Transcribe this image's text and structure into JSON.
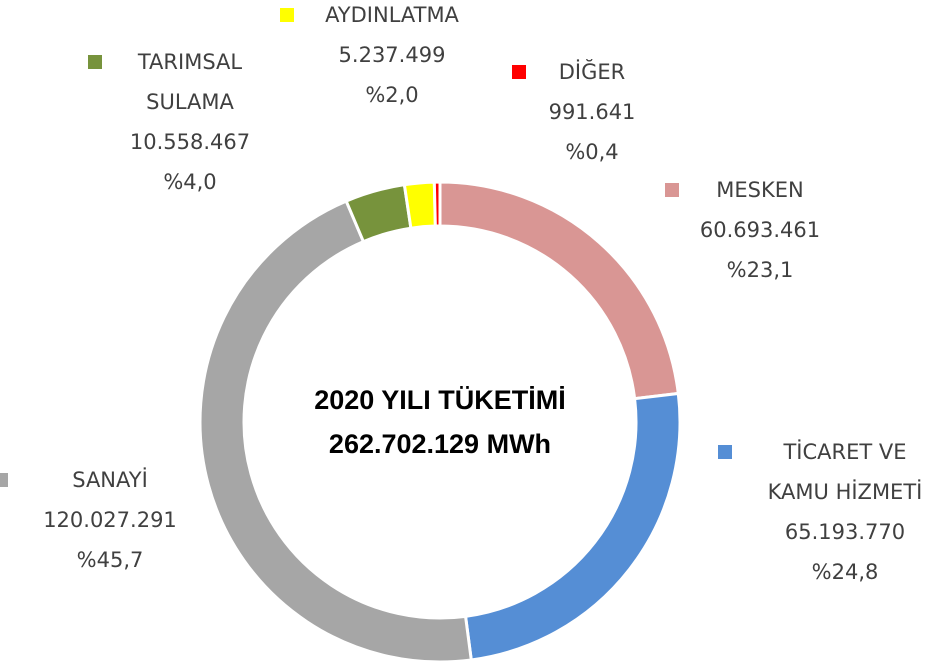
{
  "chart_data": {
    "type": "pie",
    "donut": true,
    "center_text": [
      "2020 YILI TÜKETİMİ",
      "262.702.129 MWh"
    ],
    "categories": [
      "MESKEN",
      "TİCARET VE KAMU HİZMETİ",
      "SANAYİ",
      "TARIMSAL SULAMA",
      "AYDINLATMA",
      "DİĞER"
    ],
    "values": [
      60693461,
      65193770,
      120027291,
      10558467,
      5237499,
      991641
    ],
    "value_labels": [
      "60.693.461",
      "65.193.770",
      "120.027.291",
      "10.558.467",
      "5.237.499",
      "991.641"
    ],
    "percent_labels": [
      "%23,1",
      "%24,8",
      "%45,7",
      "%4,0",
      "%2,0",
      "%0,4"
    ],
    "colors": [
      "#d99694",
      "#558ed5",
      "#a6a6a6",
      "#77933c",
      "#ffff00",
      "#ff0000"
    ]
  }
}
